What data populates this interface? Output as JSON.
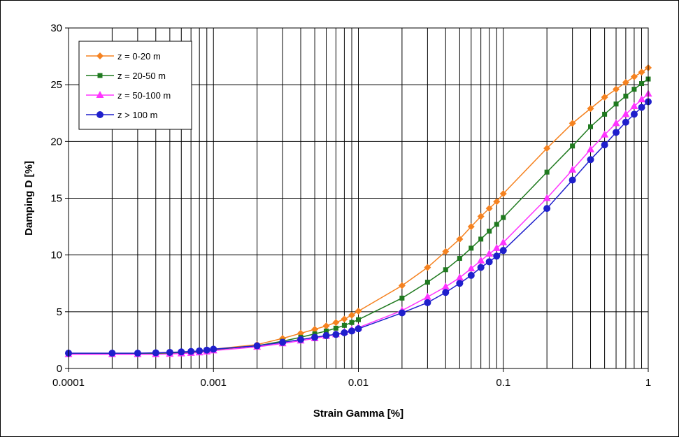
{
  "chart_data": {
    "type": "line",
    "xlabel": "Strain Gamma [%]",
    "ylabel": "Damping D [%]",
    "xscale": "log",
    "xlim": [
      0.0001,
      1
    ],
    "ylim": [
      0,
      30
    ],
    "x_ticks": [
      "0.0001",
      "0.001",
      "0.01",
      "0.1",
      "1"
    ],
    "y_ticks": [
      "0",
      "5",
      "10",
      "15",
      "20",
      "25",
      "30"
    ],
    "grid": "on",
    "legend_position": "top-left",
    "series": [
      {
        "name": "z = 0-20 m",
        "color": "#f58220",
        "marker": "diamond",
        "points": [
          [
            0.0001,
            1.3
          ],
          [
            0.0002,
            1.3
          ],
          [
            0.0003,
            1.3
          ],
          [
            0.0004,
            1.3
          ],
          [
            0.0005,
            1.35
          ],
          [
            0.0006,
            1.4
          ],
          [
            0.0007,
            1.45
          ],
          [
            0.0008,
            1.5
          ],
          [
            0.0009,
            1.6
          ],
          [
            0.001,
            1.7
          ],
          [
            0.002,
            2.1
          ],
          [
            0.003,
            2.65
          ],
          [
            0.004,
            3.1
          ],
          [
            0.005,
            3.45
          ],
          [
            0.006,
            3.75
          ],
          [
            0.007,
            4.05
          ],
          [
            0.008,
            4.35
          ],
          [
            0.009,
            4.7
          ],
          [
            0.01,
            5.05
          ],
          [
            0.02,
            7.3
          ],
          [
            0.03,
            8.9
          ],
          [
            0.04,
            10.3
          ],
          [
            0.05,
            11.4
          ],
          [
            0.06,
            12.5
          ],
          [
            0.07,
            13.4
          ],
          [
            0.08,
            14.1
          ],
          [
            0.09,
            14.7
          ],
          [
            0.1,
            15.4
          ],
          [
            0.2,
            19.4
          ],
          [
            0.3,
            21.6
          ],
          [
            0.4,
            22.9
          ],
          [
            0.5,
            23.9
          ],
          [
            0.6,
            24.6
          ],
          [
            0.7,
            25.2
          ],
          [
            0.8,
            25.7
          ],
          [
            0.9,
            26.1
          ],
          [
            1,
            26.5
          ]
        ]
      },
      {
        "name": "z = 20-50 m",
        "color": "#1f7a1f",
        "marker": "square",
        "points": [
          [
            0.0001,
            1.3
          ],
          [
            0.0002,
            1.3
          ],
          [
            0.0003,
            1.3
          ],
          [
            0.0004,
            1.3
          ],
          [
            0.0005,
            1.33
          ],
          [
            0.0006,
            1.38
          ],
          [
            0.0007,
            1.42
          ],
          [
            0.0008,
            1.47
          ],
          [
            0.0009,
            1.55
          ],
          [
            0.001,
            1.65
          ],
          [
            0.002,
            2.0
          ],
          [
            0.003,
            2.4
          ],
          [
            0.004,
            2.75
          ],
          [
            0.005,
            3.05
          ],
          [
            0.006,
            3.3
          ],
          [
            0.007,
            3.55
          ],
          [
            0.008,
            3.8
          ],
          [
            0.009,
            4.05
          ],
          [
            0.01,
            4.3
          ],
          [
            0.02,
            6.2
          ],
          [
            0.03,
            7.6
          ],
          [
            0.04,
            8.7
          ],
          [
            0.05,
            9.7
          ],
          [
            0.06,
            10.6
          ],
          [
            0.07,
            11.4
          ],
          [
            0.08,
            12.1
          ],
          [
            0.09,
            12.7
          ],
          [
            0.1,
            13.3
          ],
          [
            0.2,
            17.3
          ],
          [
            0.3,
            19.6
          ],
          [
            0.4,
            21.3
          ],
          [
            0.5,
            22.4
          ],
          [
            0.6,
            23.3
          ],
          [
            0.7,
            24.0
          ],
          [
            0.8,
            24.6
          ],
          [
            0.9,
            25.1
          ],
          [
            1,
            25.5
          ]
        ]
      },
      {
        "name": "z = 50-100 m",
        "color": "#ff33ff",
        "marker": "triangle",
        "points": [
          [
            0.0001,
            1.25
          ],
          [
            0.0002,
            1.25
          ],
          [
            0.0003,
            1.25
          ],
          [
            0.0004,
            1.25
          ],
          [
            0.0005,
            1.28
          ],
          [
            0.0006,
            1.32
          ],
          [
            0.0007,
            1.36
          ],
          [
            0.0008,
            1.4
          ],
          [
            0.0009,
            1.48
          ],
          [
            0.001,
            1.58
          ],
          [
            0.002,
            1.9
          ],
          [
            0.003,
            2.2
          ],
          [
            0.004,
            2.45
          ],
          [
            0.005,
            2.65
          ],
          [
            0.006,
            2.85
          ],
          [
            0.007,
            3.0
          ],
          [
            0.008,
            3.2
          ],
          [
            0.009,
            3.4
          ],
          [
            0.01,
            3.6
          ],
          [
            0.02,
            5.1
          ],
          [
            0.03,
            6.3
          ],
          [
            0.04,
            7.2
          ],
          [
            0.05,
            8.0
          ],
          [
            0.06,
            8.8
          ],
          [
            0.07,
            9.5
          ],
          [
            0.08,
            10.1
          ],
          [
            0.09,
            10.6
          ],
          [
            0.1,
            11.1
          ],
          [
            0.2,
            15.0
          ],
          [
            0.3,
            17.5
          ],
          [
            0.4,
            19.3
          ],
          [
            0.5,
            20.6
          ],
          [
            0.6,
            21.6
          ],
          [
            0.7,
            22.4
          ],
          [
            0.8,
            23.1
          ],
          [
            0.9,
            23.7
          ],
          [
            1,
            24.2
          ]
        ]
      },
      {
        "name": "z > 100 m",
        "color": "#1f1fcc",
        "marker": "circle",
        "points": [
          [
            0.0001,
            1.35
          ],
          [
            0.0002,
            1.35
          ],
          [
            0.0003,
            1.35
          ],
          [
            0.0004,
            1.38
          ],
          [
            0.0005,
            1.42
          ],
          [
            0.0006,
            1.46
          ],
          [
            0.0007,
            1.5
          ],
          [
            0.0008,
            1.55
          ],
          [
            0.0009,
            1.62
          ],
          [
            0.001,
            1.7
          ],
          [
            0.002,
            2.0
          ],
          [
            0.003,
            2.3
          ],
          [
            0.004,
            2.55
          ],
          [
            0.005,
            2.75
          ],
          [
            0.006,
            2.9
          ],
          [
            0.007,
            3.0
          ],
          [
            0.008,
            3.15
          ],
          [
            0.009,
            3.3
          ],
          [
            0.01,
            3.5
          ],
          [
            0.02,
            4.9
          ],
          [
            0.03,
            5.8
          ],
          [
            0.04,
            6.7
          ],
          [
            0.05,
            7.5
          ],
          [
            0.06,
            8.2
          ],
          [
            0.07,
            8.9
          ],
          [
            0.08,
            9.4
          ],
          [
            0.09,
            9.9
          ],
          [
            0.1,
            10.4
          ],
          [
            0.2,
            14.1
          ],
          [
            0.3,
            16.6
          ],
          [
            0.4,
            18.4
          ],
          [
            0.5,
            19.7
          ],
          [
            0.6,
            20.8
          ],
          [
            0.7,
            21.7
          ],
          [
            0.8,
            22.4
          ],
          [
            0.9,
            23.0
          ],
          [
            1,
            23.5
          ]
        ]
      }
    ]
  }
}
